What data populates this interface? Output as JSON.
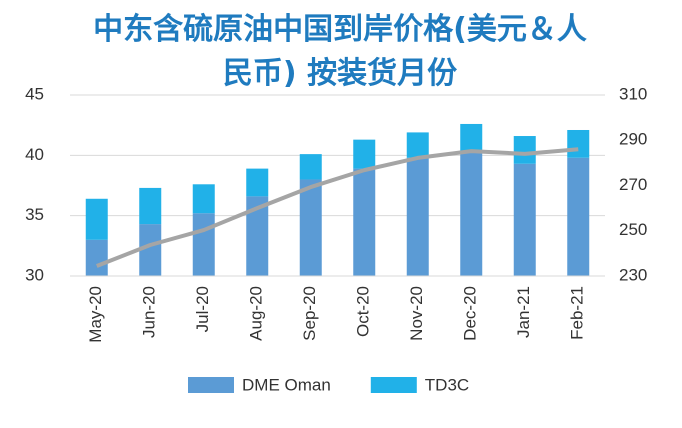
{
  "chart_data": {
    "type": "bar",
    "title": "中东含硫原油中国到岸价格(美元＆人民币) 按装货月份",
    "categories": [
      "May-20",
      "Jun-20",
      "Jul-20",
      "Aug-20",
      "Sep-20",
      "Oct-20",
      "Nov-20",
      "Dec-20",
      "Jan-21",
      "Feb-21"
    ],
    "stacked": true,
    "series": [
      {
        "name": "DME Oman",
        "color": "#5b9bd5",
        "values": [
          33.0,
          34.3,
          35.2,
          36.6,
          38.0,
          38.9,
          39.8,
          40.3,
          39.3,
          39.8
        ]
      },
      {
        "name": "TD3C",
        "color": "#21b1e8",
        "values": [
          3.4,
          3.0,
          2.4,
          2.3,
          2.1,
          2.4,
          2.1,
          2.3,
          2.3,
          2.3
        ]
      },
      {
        "type": "line",
        "axis": "y2",
        "color": "#a5a5a5",
        "values": [
          234.4,
          243.7,
          250.3,
          260.0,
          269.3,
          276.8,
          282.2,
          285.2,
          284.0,
          286.0
        ]
      }
    ],
    "ylim": [
      30,
      45
    ],
    "yticks": [
      30,
      35,
      40,
      45
    ],
    "y2lim": [
      230,
      310
    ],
    "y2ticks": [
      230,
      250,
      270,
      290,
      310
    ],
    "legend": "bottom"
  }
}
